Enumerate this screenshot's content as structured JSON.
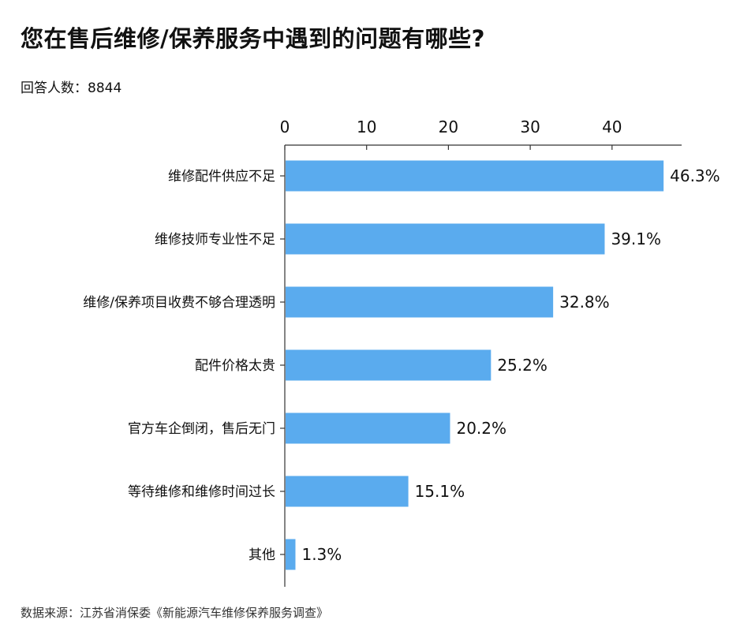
{
  "header": {
    "title": "您在售后维修/保养服务中遇到的问题有哪些?",
    "respondents": "回答人数：8844"
  },
  "footer": {
    "source": "数据来源：江苏省消保委《新能源汽车维修保养服务调查》"
  },
  "chart_data": {
    "type": "bar",
    "orientation": "horizontal",
    "categories": [
      "维修配件供应不足",
      "维修技师专业性不足",
      "维修/保养项目收费不够合理透明",
      "配件价格太贵",
      "官方车企倒闭，售后无门",
      "等待维修和维修时间过长",
      "其他"
    ],
    "values": [
      46.3,
      39.1,
      32.8,
      25.2,
      20.2,
      15.1,
      1.3
    ],
    "value_labels": [
      "46.3%",
      "39.1%",
      "32.8%",
      "25.2%",
      "20.2%",
      "15.1%",
      "1.3%"
    ],
    "x_ticks": [
      0,
      10,
      20,
      30,
      40
    ],
    "xlim": [
      0,
      48.5
    ],
    "axis_position": "top",
    "grid": false,
    "bar_color": "#5aabee"
  }
}
